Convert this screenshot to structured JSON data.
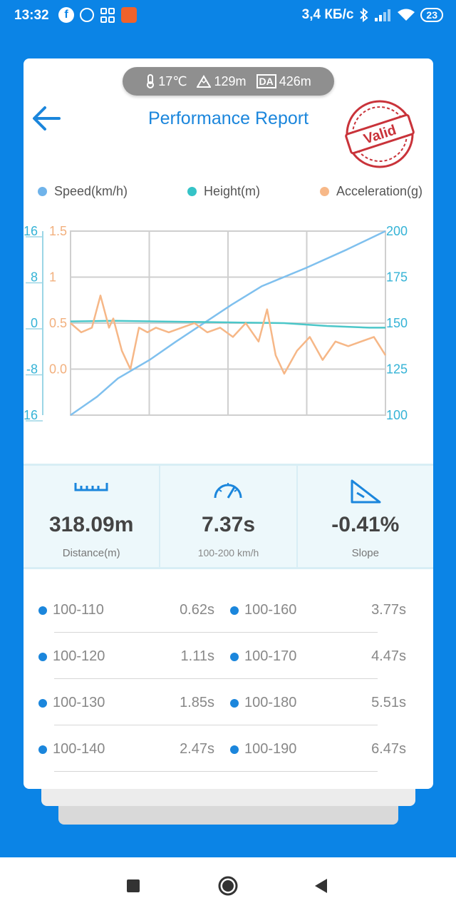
{
  "status_bar": {
    "time": "13:32",
    "net_speed": "3,4 КБ/с",
    "battery": "23",
    "icons": [
      "facebook-icon",
      "chat-icon",
      "apps-icon",
      "app-icon",
      "bluetooth-icon",
      "signal-icon",
      "wifi-icon"
    ]
  },
  "env": {
    "temperature": "17℃",
    "altitude": "129m",
    "da_label": "DA",
    "density_altitude": "426m"
  },
  "header": {
    "title": "Performance Report",
    "stamp_text": "Valid"
  },
  "legend": [
    {
      "label": "Speed(km/h)",
      "color": "#6fb3ea"
    },
    {
      "label": "Height(m)",
      "color": "#35c3c7"
    },
    {
      "label": "Acceleration(g)",
      "color": "#f7b888"
    }
  ],
  "chart_data": {
    "type": "line",
    "title": "",
    "y_left_outer": {
      "ticks": [
        "16",
        "8",
        "0",
        "-8",
        "-16"
      ],
      "color": "#35b3d6",
      "range": [
        -16,
        16
      ]
    },
    "y_left_inner": {
      "ticks": [
        "1.5",
        "1",
        "0.5",
        "0.0"
      ],
      "color": "#f2b07e",
      "range": [
        -0.5,
        1.5
      ]
    },
    "y_right": {
      "ticks": [
        "200",
        "175",
        "150",
        "125",
        "100"
      ],
      "color": "#35b3d6",
      "range": [
        100,
        200
      ]
    },
    "grid": true,
    "series": [
      {
        "name": "Speed(km/h)",
        "axis": "right",
        "color": "#7fc0ee",
        "x": [
          0,
          0.62,
          1.11,
          1.85,
          2.47,
          3.77,
          4.47,
          5.51,
          6.47,
          7.37
        ],
        "values": [
          100,
          110,
          120,
          130,
          140,
          160,
          170,
          180,
          190,
          200
        ]
      },
      {
        "name": "Height(m)",
        "axis": "left_outer",
        "color": "#4cc7c9",
        "x": [
          0,
          1,
          2,
          3,
          4,
          5,
          6,
          7,
          7.37
        ],
        "values": [
          0.3,
          0.4,
          0.3,
          0.2,
          0.1,
          0,
          -0.5,
          -0.8,
          -0.8
        ]
      },
      {
        "name": "Acceleration(g)",
        "axis": "left_inner",
        "color": "#f6b787",
        "x": [
          0,
          0.25,
          0.5,
          0.7,
          0.9,
          1.0,
          1.2,
          1.4,
          1.6,
          1.8,
          2.0,
          2.3,
          2.6,
          2.9,
          3.2,
          3.5,
          3.8,
          4.1,
          4.4,
          4.6,
          4.8,
          5.0,
          5.3,
          5.6,
          5.9,
          6.2,
          6.5,
          6.8,
          7.1,
          7.37
        ],
        "values": [
          0.5,
          0.4,
          0.45,
          0.8,
          0.45,
          0.55,
          0.2,
          0.0,
          0.45,
          0.4,
          0.45,
          0.4,
          0.45,
          0.5,
          0.4,
          0.45,
          0.35,
          0.5,
          0.3,
          0.65,
          0.15,
          -0.05,
          0.2,
          0.35,
          0.1,
          0.3,
          0.25,
          0.3,
          0.35,
          0.15
        ]
      }
    ]
  },
  "stats": [
    {
      "icon": "ruler-icon",
      "value": "318.09m",
      "label": "Distance(m)"
    },
    {
      "icon": "speedometer-icon",
      "value": "7.37s",
      "label": "100-200 km/h"
    },
    {
      "icon": "slope-icon",
      "value": "-0.41%",
      "label": "Slope"
    }
  ],
  "splits": [
    {
      "left_label": "100-110",
      "left_time": "0.62s",
      "right_label": "100-160",
      "right_time": "3.77s"
    },
    {
      "left_label": "100-120",
      "left_time": "1.11s",
      "right_label": "100-170",
      "right_time": "4.47s"
    },
    {
      "left_label": "100-130",
      "left_time": "1.85s",
      "right_label": "100-180",
      "right_time": "5.51s"
    },
    {
      "left_label": "100-140",
      "left_time": "2.47s",
      "right_label": "100-190",
      "right_time": "6.47s"
    }
  ]
}
